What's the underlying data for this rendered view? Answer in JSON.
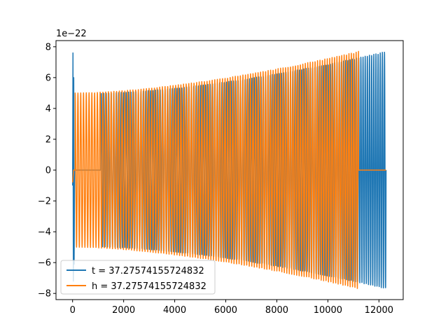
{
  "chart_data": {
    "type": "line",
    "title": "",
    "xlabel": "",
    "ylabel": "",
    "y_offset_label": "1e−22",
    "xlim": [
      -650,
      12950
    ],
    "ylim": [
      -8.4,
      8.4
    ],
    "xticks": [
      0,
      2000,
      4000,
      6000,
      8000,
      10000,
      12000
    ],
    "xtick_labels": [
      "0",
      "2000",
      "4000",
      "6000",
      "8000",
      "10000",
      "12000"
    ],
    "yticks": [
      -8,
      -6,
      -4,
      -2,
      0,
      2,
      4,
      6,
      8
    ],
    "ytick_labels": [
      "−8",
      "−6",
      "−4",
      "−2",
      "0",
      "2",
      "4",
      "6",
      "8"
    ],
    "grid": false,
    "legend_position": "lower-left",
    "series": [
      {
        "name": "t = 37.27574155724832",
        "color": "#1f77b4",
        "description": "chirp oscillation, spike near x=0, zero gap 120–1100, then growing sinusoid up to x≈12280",
        "x_range": [
          0,
          12280
        ],
        "zero_gap": [
          120,
          1100
        ],
        "start_spike": 7.6,
        "amplitude_start": 5.0,
        "amplitude_end": 7.7,
        "cycles": 124
      },
      {
        "name": "h = 37.27574155724832",
        "color": "#ff7f0e",
        "description": "oscillation with growing amplitude from x≈100 to x≈11200, then zero to x≈12280",
        "x_range": [
          0,
          12280
        ],
        "signal_range": [
          100,
          11200
        ],
        "zero_gap_start": [
          0,
          100
        ],
        "amplitude_start": 5.0,
        "amplitude_end": 7.7,
        "cycles": 110
      }
    ]
  }
}
